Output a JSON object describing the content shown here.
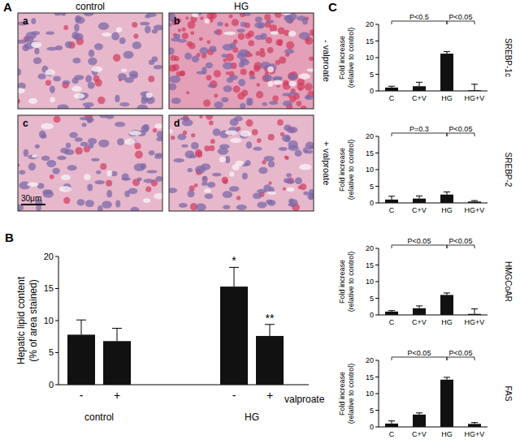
{
  "image_panel": {
    "panel": "A",
    "columns": [
      "control",
      "HG"
    ],
    "rows": [
      "- valproate",
      "+ valproate"
    ],
    "tiles": [
      "a",
      "b",
      "c",
      "d"
    ],
    "scale_bar": "30μm"
  },
  "chart_data": [
    {
      "type": "bar",
      "panel": "B",
      "y_label": [
        "Hepatic lipid content",
        "(% of area stained)"
      ],
      "x_label": "valproate",
      "categories": [
        "-",
        "+",
        "-",
        "+"
      ],
      "group_labels": [
        "control",
        "HG"
      ],
      "values": [
        7.8,
        6.8,
        15.3,
        7.6
      ],
      "errors": [
        2.3,
        2.0,
        3.0,
        1.8
      ],
      "significance": [
        null,
        null,
        "*",
        "**"
      ],
      "color": "#111111",
      "ylim": [
        0,
        20
      ],
      "yticks": [
        0,
        5,
        10,
        15,
        20
      ],
      "grid": false
    },
    {
      "type": "bar",
      "panel": "C",
      "title": "SREBP-1c",
      "y_label": [
        "Fold increase",
        "(relative to control)"
      ],
      "categories": [
        "C",
        "C+V",
        "HG",
        "HG+V"
      ],
      "values": [
        1.0,
        1.4,
        11.2,
        0.2
      ],
      "errors": [
        0.4,
        1.2,
        0.6,
        1.8
      ],
      "comparisons": [
        {
          "from": "C",
          "to": "HG",
          "label": "P<0.5"
        },
        {
          "from": "HG",
          "to": "HG+V",
          "label": "P<0.05"
        }
      ],
      "color": "#111111",
      "ylim": [
        0,
        20
      ],
      "yticks": [
        0,
        5,
        10,
        15,
        20
      ],
      "grid": false
    },
    {
      "type": "bar",
      "title": "SREBP-2",
      "y_label": [
        "Fold increase",
        "(relative to control)"
      ],
      "categories": [
        "C",
        "C+V",
        "HG",
        "HG+V"
      ],
      "values": [
        1.0,
        1.3,
        2.5,
        0.4
      ],
      "errors": [
        1.0,
        0.8,
        0.8,
        0.3
      ],
      "comparisons": [
        {
          "from": "C",
          "to": "HG",
          "label": "P=0.3"
        },
        {
          "from": "HG",
          "to": "HG+V",
          "label": "P<0.05"
        }
      ],
      "color": "#111111",
      "ylim": [
        0,
        20
      ],
      "yticks": [
        0,
        5,
        10,
        15,
        20
      ],
      "grid": false
    },
    {
      "type": "bar",
      "title": "HMGCoAR",
      "y_label": [
        "Fold increase",
        "(relative to control)"
      ],
      "categories": [
        "C",
        "C+V",
        "HG",
        "HG+V"
      ],
      "values": [
        1.0,
        2.0,
        6.0,
        0.3
      ],
      "errors": [
        0.3,
        0.7,
        0.6,
        1.5
      ],
      "comparisons": [
        {
          "from": "C",
          "to": "HG",
          "label": "P<0.05"
        },
        {
          "from": "HG",
          "to": "HG+V",
          "label": "P<0.05"
        }
      ],
      "color": "#111111",
      "ylim": [
        0,
        20
      ],
      "yticks": [
        0,
        5,
        10,
        15,
        20
      ],
      "grid": false
    },
    {
      "type": "bar",
      "title": "FAS",
      "y_label": [
        "Fold increase",
        "(relative to control)"
      ],
      "categories": [
        "C",
        "C+V",
        "HG",
        "HG+V"
      ],
      "values": [
        1.0,
        3.7,
        14.2,
        0.9
      ],
      "errors": [
        0.8,
        0.5,
        0.7,
        0.4
      ],
      "comparisons": [
        {
          "from": "C",
          "to": "HG",
          "label": "P<0.05"
        },
        {
          "from": "HG",
          "to": "HG+V",
          "label": "P<0.05"
        }
      ],
      "color": "#111111",
      "ylim": [
        0,
        20
      ],
      "yticks": [
        0,
        5,
        10,
        15,
        20
      ],
      "grid": false
    }
  ]
}
